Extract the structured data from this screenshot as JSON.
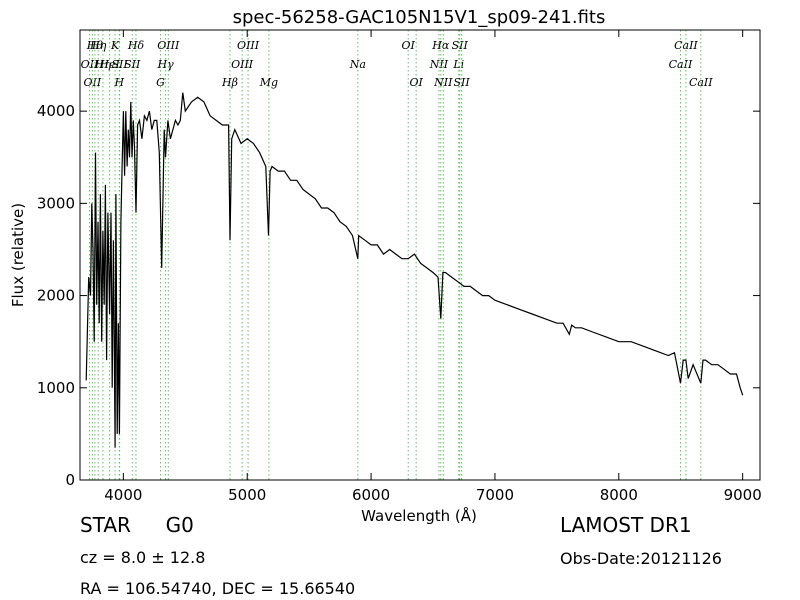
{
  "chart_data": {
    "type": "line",
    "title": "spec-56258-GAC105N15V1_sp09-241.fits",
    "xlabel": "Wavelength (Å)",
    "ylabel": "Flux (relative)",
    "xlim": [
      3650,
      9140
    ],
    "ylim": [
      0,
      4880
    ],
    "xticks": [
      4000,
      5000,
      6000,
      7000,
      8000,
      9000
    ],
    "yticks": [
      0,
      1000,
      2000,
      3000,
      4000
    ],
    "grid": false,
    "series": [
      {
        "x": [
          3700,
          3720,
          3735,
          3745,
          3755,
          3765,
          3775,
          3785,
          3795,
          3805,
          3815,
          3825,
          3835,
          3845,
          3855,
          3865,
          3875,
          3889,
          3900,
          3910,
          3920,
          3933,
          3940,
          3950,
          3960,
          3968,
          3980,
          3990,
          4000,
          4010,
          4020,
          4030,
          4040,
          4050,
          4060,
          4070,
          4080,
          4090,
          4102,
          4115,
          4130,
          4150,
          4170,
          4190,
          4210,
          4230,
          4250,
          4270,
          4290,
          4310,
          4330,
          4340,
          4360,
          4380,
          4400,
          4420,
          4440,
          4460,
          4480,
          4500,
          4550,
          4600,
          4650,
          4700,
          4750,
          4800,
          4850,
          4861,
          4875,
          4900,
          4950,
          5000,
          5050,
          5100,
          5150,
          5172,
          5185,
          5200,
          5250,
          5300,
          5350,
          5400,
          5450,
          5500,
          5550,
          5600,
          5650,
          5700,
          5750,
          5800,
          5850,
          5893,
          5900,
          5950,
          6000,
          6050,
          6100,
          6150,
          6200,
          6250,
          6300,
          6350,
          6400,
          6450,
          6500,
          6540,
          6563,
          6580,
          6600,
          6650,
          6700,
          6750,
          6800,
          6850,
          6900,
          6950,
          7000,
          7100,
          7200,
          7300,
          7400,
          7500,
          7550,
          7600,
          7620,
          7650,
          7700,
          7800,
          7900,
          8000,
          8100,
          8200,
          8300,
          8400,
          8450,
          8498,
          8520,
          8542,
          8560,
          8600,
          8662,
          8680,
          8700,
          8750,
          8800,
          8850,
          8900,
          8950,
          8980,
          9000
        ],
        "y": [
          1080,
          2200,
          2000,
          3000,
          2500,
          1500,
          3550,
          1900,
          2800,
          1700,
          3100,
          1500,
          2700,
          1900,
          3200,
          1300,
          2900,
          1800,
          2900,
          1000,
          2600,
          350,
          3100,
          500,
          1700,
          500,
          2800,
          3400,
          4000,
          3300,
          4000,
          3400,
          3800,
          3500,
          4100,
          3500,
          3900,
          3600,
          2900,
          3850,
          3900,
          3700,
          3950,
          3900,
          4000,
          3800,
          3900,
          3900,
          3550,
          2300,
          3800,
          3500,
          3900,
          3700,
          3800,
          3900,
          3850,
          3900,
          4200,
          4000,
          4100,
          4150,
          4100,
          3950,
          3900,
          3850,
          3850,
          2600,
          3700,
          3800,
          3650,
          3700,
          3650,
          3550,
          3400,
          2650,
          3350,
          3400,
          3350,
          3350,
          3250,
          3250,
          3150,
          3100,
          3050,
          2950,
          2950,
          2900,
          2800,
          2750,
          2650,
          2400,
          2650,
          2600,
          2550,
          2550,
          2450,
          2500,
          2450,
          2400,
          2400,
          2450,
          2350,
          2300,
          2250,
          2200,
          1750,
          2250,
          2250,
          2200,
          2150,
          2100,
          2100,
          2050,
          2000,
          2000,
          1950,
          1900,
          1850,
          1800,
          1750,
          1700,
          1700,
          1580,
          1680,
          1650,
          1650,
          1600,
          1550,
          1500,
          1500,
          1450,
          1400,
          1350,
          1380,
          1050,
          1300,
          1300,
          1100,
          1250,
          1050,
          1300,
          1300,
          1250,
          1250,
          1200,
          1150,
          1150,
          1000,
          920
        ]
      }
    ],
    "lines": [
      {
        "x": 3727,
        "label": "OII",
        "row": 2
      },
      {
        "x": 3750,
        "label": "OII",
        "row": 3
      },
      {
        "x": 3770,
        "label": "Hθ",
        "row": 1
      },
      {
        "x": 3797,
        "label": "Hη",
        "row": 1
      },
      {
        "x": 3835,
        "label": "Hη",
        "row": 2
      },
      {
        "x": 3889,
        "label": "HeI",
        "row": 2
      },
      {
        "x": 3933,
        "label": "K",
        "row": 1
      },
      {
        "x": 3967,
        "label": "H",
        "row": 3
      },
      {
        "x": 3970,
        "label": "SII",
        "row": 2
      },
      {
        "x": 4072,
        "label": "SII",
        "row": 2
      },
      {
        "x": 4102,
        "label": "Hδ",
        "row": 1
      },
      {
        "x": 4300,
        "label": "G",
        "row": 3
      },
      {
        "x": 4341,
        "label": "Hγ",
        "row": 2
      },
      {
        "x": 4363,
        "label": "OIII",
        "row": 1
      },
      {
        "x": 4861,
        "label": "Hβ",
        "row": 3
      },
      {
        "x": 4959,
        "label": "OIII",
        "row": 2
      },
      {
        "x": 5007,
        "label": "OIII",
        "row": 1
      },
      {
        "x": 5175,
        "label": "Mg",
        "row": 3
      },
      {
        "x": 5893,
        "label": "Na",
        "row": 2
      },
      {
        "x": 6300,
        "label": "OI",
        "row": 1
      },
      {
        "x": 6364,
        "label": "OI",
        "row": 3
      },
      {
        "x": 6548,
        "label": "NII",
        "row": 2
      },
      {
        "x": 6563,
        "label": "Hα",
        "row": 1
      },
      {
        "x": 6583,
        "label": "NII",
        "row": 3
      },
      {
        "x": 6708,
        "label": "Li",
        "row": 2
      },
      {
        "x": 6716,
        "label": "SII",
        "row": 1
      },
      {
        "x": 6731,
        "label": "SII",
        "row": 3
      },
      {
        "x": 8498,
        "label": "CaII",
        "row": 2
      },
      {
        "x": 8542,
        "label": "CaII",
        "row": 1
      },
      {
        "x": 8662,
        "label": "CaII",
        "row": 3
      }
    ]
  },
  "footer": {
    "type_label": "STAR",
    "subclass": "G0",
    "survey": "LAMOST DR1",
    "cz": "cz = 8.0 ± 12.8",
    "obs_date": "Obs-Date:20121126",
    "coords": "RA = 106.54740, DEC = 15.66540"
  }
}
